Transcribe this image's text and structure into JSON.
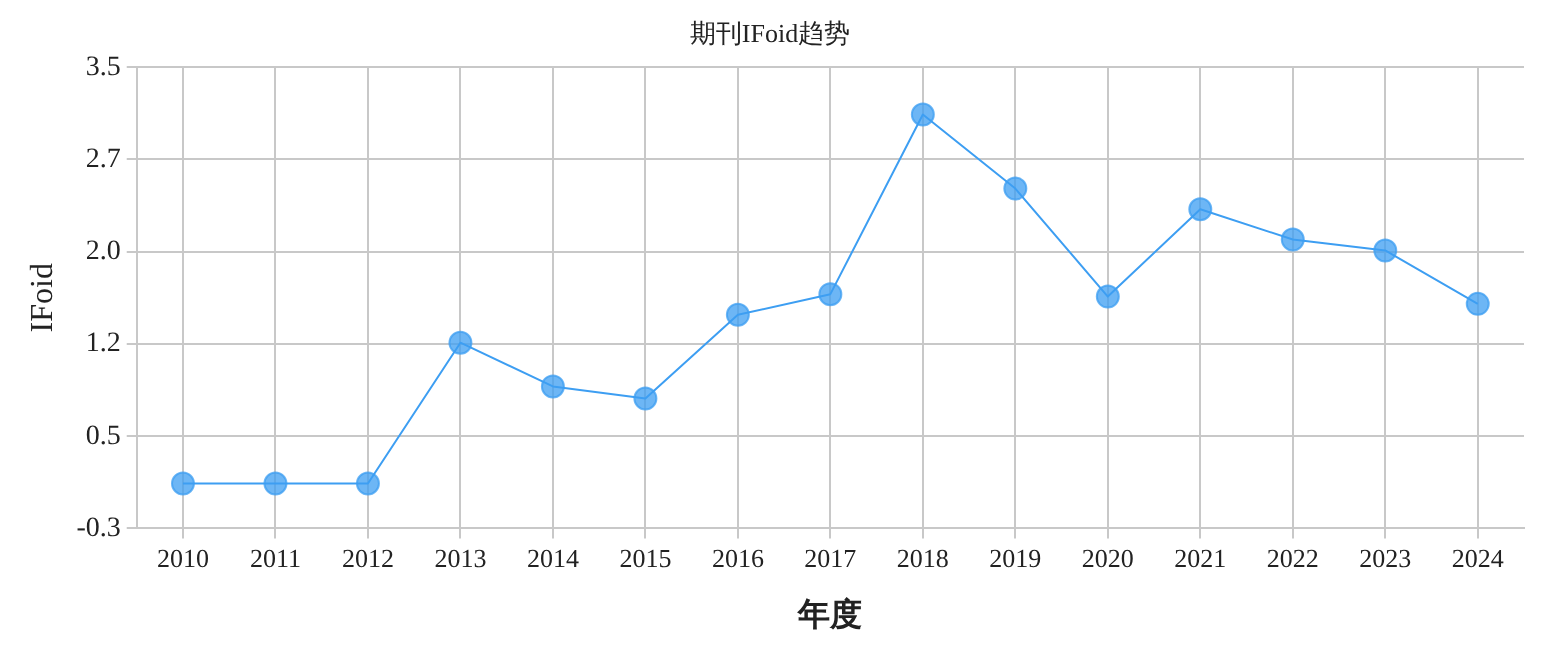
{
  "chart_data": {
    "type": "line",
    "title": "期刊IFoid趋势",
    "xlabel": "年度",
    "ylabel": "IFoid",
    "categories": [
      "2010",
      "2011",
      "2012",
      "2013",
      "2014",
      "2015",
      "2016",
      "2017",
      "2018",
      "2019",
      "2020",
      "2021",
      "2022",
      "2023",
      "2024"
    ],
    "series": [
      {
        "color": "#3d9ef2",
        "values": [
          0.07,
          0.07,
          0.07,
          1.23,
          0.87,
          0.77,
          1.46,
          1.63,
          3.11,
          2.5,
          1.61,
          2.33,
          2.08,
          1.99,
          1.55
        ]
      }
    ],
    "ylim": [
      -0.3,
      3.5
    ],
    "yticks": [
      {
        "value": -0.3,
        "label": "-0.3"
      },
      {
        "value": 0.46,
        "label": "0.5"
      },
      {
        "value": 1.22,
        "label": "1.2"
      },
      {
        "value": 1.98,
        "label": "2.0"
      },
      {
        "value": 2.74,
        "label": "2.7"
      },
      {
        "value": 3.5,
        "label": "3.5"
      }
    ],
    "grid": true,
    "legend": false,
    "marker": "circle",
    "line_style": "solid"
  }
}
